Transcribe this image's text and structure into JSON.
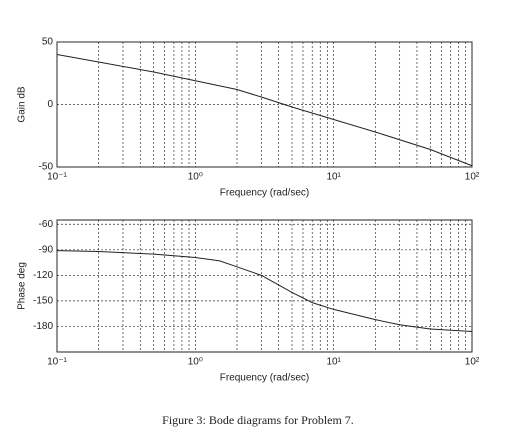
{
  "chart_data": [
    {
      "type": "line",
      "ylabel": "Gain dB",
      "xlabel": "Frequency (rad/sec)",
      "xscale": "log",
      "grid": true,
      "xlim": [
        0.1,
        100
      ],
      "xticks": [
        {
          "value": 0.1,
          "label": "10⁻¹"
        },
        {
          "value": 1,
          "label": "10⁰"
        },
        {
          "value": 10,
          "label": "10¹"
        },
        {
          "value": 100,
          "label": "10²"
        }
      ],
      "ylim": [
        -50,
        50
      ],
      "yticks": [
        -50,
        0,
        50
      ],
      "series": [
        {
          "color": "#222222",
          "x": [
            0.1,
            0.2,
            0.5,
            1,
            2,
            3,
            5,
            10,
            20,
            50,
            100
          ],
          "values": [
            40,
            34,
            26,
            19,
            12,
            6,
            -2,
            -12,
            -22,
            -36,
            -49
          ]
        }
      ]
    },
    {
      "type": "line",
      "ylabel": "Phase deg",
      "xlabel": "Frequency (rad/sec)",
      "xscale": "log",
      "grid": true,
      "xlim": [
        0.1,
        100
      ],
      "xticks": [
        {
          "value": 0.1,
          "label": "10⁻¹"
        },
        {
          "value": 1,
          "label": "10⁰"
        },
        {
          "value": 10,
          "label": "10¹"
        },
        {
          "value": 100,
          "label": "10²"
        }
      ],
      "ylim": [
        -210,
        -55
      ],
      "yticks": [
        -60,
        -90,
        -120,
        -150,
        -180
      ],
      "series": [
        {
          "color": "#222222",
          "x": [
            0.1,
            0.2,
            0.5,
            1,
            1.5,
            2,
            3,
            5,
            7,
            10,
            20,
            30,
            50,
            100
          ],
          "values": [
            -91,
            -92,
            -95,
            -99,
            -103,
            -110,
            -120,
            -140,
            -152,
            -160,
            -172,
            -178,
            -183,
            -186
          ]
        }
      ]
    }
  ],
  "caption": "Figure 3: Bode diagrams for Problem 7."
}
